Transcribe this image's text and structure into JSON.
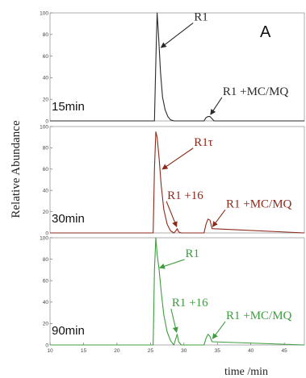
{
  "figure": {
    "panel_letter": "A",
    "ylabel": "Relative Abundance",
    "xlabel": "time /min"
  },
  "chart_data": {
    "type": "line",
    "xlim": [
      10,
      48
    ],
    "ylim": [
      0,
      100
    ],
    "x_ticks": [
      10,
      15,
      20,
      25,
      30,
      35,
      40,
      45
    ],
    "x_tick_labels": [
      "10",
      "15",
      "20",
      "25",
      "30",
      "35",
      "40",
      "45"
    ],
    "y_ticks": [
      0,
      20,
      40,
      60,
      80,
      100
    ],
    "y_tick_labels": [
      "0",
      "20",
      "40",
      "60",
      "80",
      "100"
    ],
    "grid": false,
    "panels": [
      {
        "time_label": "15min",
        "color": "#2a2a2a",
        "x": [
          10,
          25.6,
          25.8,
          26.0,
          26.2,
          26.5,
          26.8,
          27.2,
          27.6,
          28.0,
          28.5,
          33.0,
          33.3,
          33.6,
          33.9,
          34.2,
          34.5,
          48
        ],
        "y": [
          0,
          0,
          55,
          100,
          80,
          45,
          22,
          10,
          4,
          1,
          0,
          0,
          3,
          4,
          4,
          2,
          0,
          0
        ],
        "annotations": [
          {
            "text": "R1",
            "x": 31.5,
            "y": 93,
            "arrow_to_x": 26.6,
            "arrow_to_y": 68
          },
          {
            "text": "R1 +MC/MQ",
            "x": 35.8,
            "y": 24,
            "arrow_to_x": 34.0,
            "arrow_to_y": 6
          }
        ]
      },
      {
        "time_label": "30min",
        "color": "#8b2a1a",
        "x": [
          10,
          25.4,
          25.6,
          25.8,
          26.0,
          26.3,
          26.6,
          27.0,
          27.5,
          28.0,
          28.5,
          28.8,
          29.0,
          29.2,
          29.6,
          33.0,
          33.3,
          33.6,
          33.9,
          34.2,
          48
        ],
        "y": [
          0,
          0,
          60,
          95,
          90,
          70,
          45,
          22,
          8,
          2,
          0,
          2,
          4,
          1,
          0,
          0,
          8,
          13,
          12,
          4,
          0
        ],
        "annotations": [
          {
            "text": "R1τ",
            "x": 31.5,
            "y": 82,
            "arrow_to_x": 26.8,
            "arrow_to_y": 60
          },
          {
            "text": "R1 +16",
            "x": 27.5,
            "y": 32,
            "arrow_to_x": 28.9,
            "arrow_to_y": 6
          },
          {
            "text": "R1 +MC/MQ",
            "x": 36.3,
            "y": 24,
            "arrow_to_x": 34.3,
            "arrow_to_y": 6
          }
        ]
      },
      {
        "time_label": "90min",
        "color": "#3f9c3f",
        "x": [
          10,
          25.4,
          25.6,
          25.8,
          26.0,
          26.3,
          26.6,
          27.0,
          27.5,
          28.0,
          28.5,
          28.8,
          29.0,
          29.2,
          29.6,
          33.0,
          33.3,
          33.6,
          33.9,
          34.2,
          48
        ],
        "y": [
          0,
          0,
          70,
          100,
          85,
          70,
          50,
          28,
          12,
          4,
          0,
          6,
          10,
          3,
          0,
          0,
          6,
          10,
          8,
          3,
          0
        ],
        "annotations": [
          {
            "text": "R1",
            "x": 30.2,
            "y": 82,
            "arrow_to_x": 26.4,
            "arrow_to_y": 72
          },
          {
            "text": "R1 +16",
            "x": 28.2,
            "y": 36,
            "arrow_to_x": 28.9,
            "arrow_to_y": 12
          },
          {
            "text": "R1 +MC/MQ",
            "x": 36.3,
            "y": 24,
            "arrow_to_x": 34.3,
            "arrow_to_y": 6
          }
        ]
      }
    ]
  }
}
